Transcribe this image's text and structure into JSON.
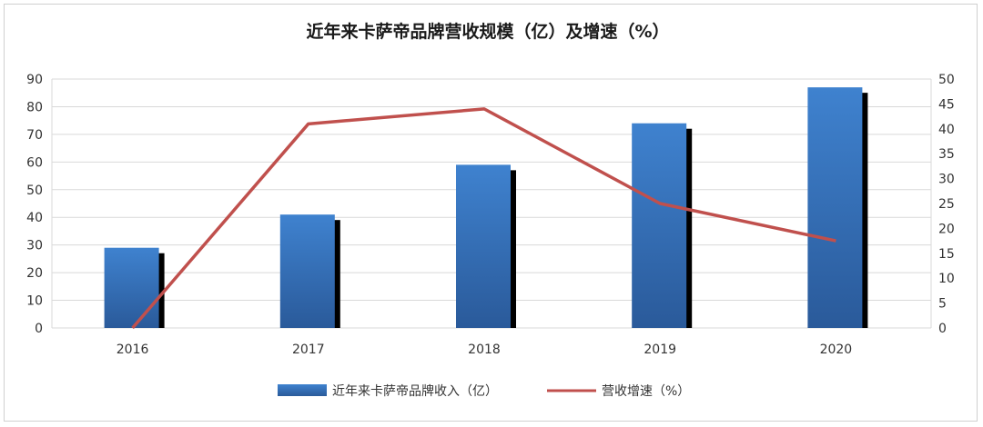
{
  "chart_data": {
    "type": "bar",
    "title": "近年来卡萨帝品牌营收规模（亿）及增速（%）",
    "categories": [
      "2016",
      "2017",
      "2018",
      "2019",
      "2020"
    ],
    "series": [
      {
        "name": "近年来卡萨帝品牌收入（亿）",
        "type": "bar",
        "axis": "left",
        "values": [
          29,
          41,
          59,
          74,
          87
        ]
      },
      {
        "name": "营收增速（%）",
        "type": "line",
        "axis": "right",
        "values": [
          0,
          41,
          44,
          25,
          17.5
        ]
      }
    ],
    "ylim_left": [
      0,
      90
    ],
    "yticks_left": [
      0,
      10,
      20,
      30,
      40,
      50,
      60,
      70,
      80,
      90
    ],
    "ylim_right": [
      0,
      50
    ],
    "yticks_right": [
      0,
      5,
      10,
      15,
      20,
      25,
      30,
      35,
      40,
      45,
      50
    ],
    "grid": true,
    "legend_position": "bottom",
    "colors": {
      "bar": "#3a78c2",
      "bar_dark": "#2a5a9a",
      "line": "#c0504d",
      "grid": "#d9d9d9"
    }
  }
}
